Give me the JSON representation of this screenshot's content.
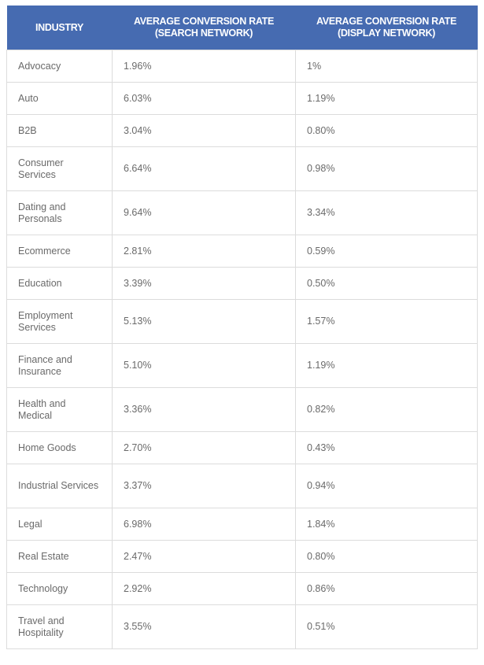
{
  "table": {
    "headers": [
      "INDUSTRY",
      "AVERAGE CONVERSION RATE (SEARCH NETWORK)",
      "AVERAGE CONVERSION RATE (DISPLAY NETWORK)"
    ],
    "header_color": "#466bb1",
    "rows": [
      {
        "industry": "Advocacy",
        "search": "1.96%",
        "display": "1%"
      },
      {
        "industry": "Auto",
        "search": "6.03%",
        "display": "1.19%"
      },
      {
        "industry": "B2B",
        "search": "3.04%",
        "display": "0.80%"
      },
      {
        "industry": "Consumer Services",
        "search": "6.64%",
        "display": "0.98%"
      },
      {
        "industry": "Dating and Personals",
        "search": "9.64%",
        "display": "3.34%"
      },
      {
        "industry": "Ecommerce",
        "search": "2.81%",
        "display": "0.59%"
      },
      {
        "industry": "Education",
        "search": "3.39%",
        "display": "0.50%"
      },
      {
        "industry": "Employment Services",
        "search": "5.13%",
        "display": "1.57%"
      },
      {
        "industry": "Finance and Insurance",
        "search": "5.10%",
        "display": "1.19%"
      },
      {
        "industry": "Health and Medical",
        "search": "3.36%",
        "display": "0.82%"
      },
      {
        "industry": "Home Goods",
        "search": "2.70%",
        "display": "0.43%"
      },
      {
        "industry": "Industrial Services",
        "search": "3.37%",
        "display": "0.94%"
      },
      {
        "industry": "Legal",
        "search": "6.98%",
        "display": "1.84%"
      },
      {
        "industry": "Real Estate",
        "search": "2.47%",
        "display": "0.80%"
      },
      {
        "industry": "Technology",
        "search": "2.92%",
        "display": "0.86%"
      },
      {
        "industry": "Travel and Hospitality",
        "search": "3.55%",
        "display": "0.51%"
      }
    ]
  }
}
